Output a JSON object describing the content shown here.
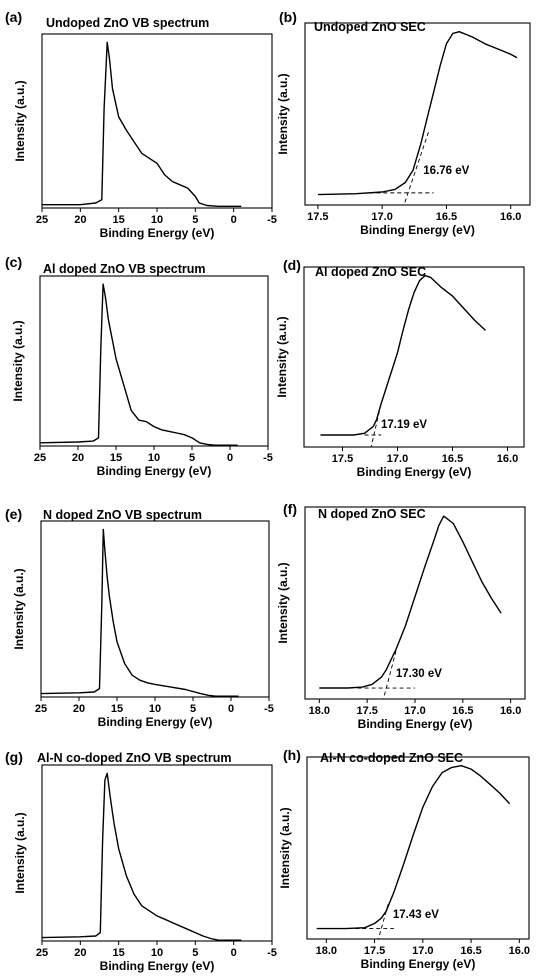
{
  "chart_data": [
    {
      "id": "a",
      "type": "line",
      "panel": "(a)",
      "title": "Undoped ZnO VB spectrum",
      "xlabel": "Binding Energy (eV)",
      "ylabel": "Intensity (a.u.)",
      "xlim": [
        25,
        -5
      ],
      "ylim": [
        0,
        1.05
      ],
      "xticks": [
        25,
        20,
        15,
        10,
        5,
        0,
        -5
      ],
      "xtick_labels": [
        "25",
        "20",
        "15",
        "10",
        "5",
        "0",
        "-5"
      ],
      "yticks_shown": false,
      "series": [
        {
          "x": [
            25,
            20,
            18,
            17.2,
            16.9,
            16.5,
            16.2,
            15.8,
            15,
            14,
            13,
            12,
            11,
            10,
            9,
            8,
            7,
            6,
            5,
            4.5,
            3.5,
            2,
            0,
            -1
          ],
          "y": [
            0.02,
            0.02,
            0.03,
            0.05,
            0.6,
            1.0,
            0.9,
            0.72,
            0.55,
            0.47,
            0.4,
            0.33,
            0.3,
            0.27,
            0.2,
            0.16,
            0.14,
            0.12,
            0.07,
            0.03,
            0.015,
            0.01,
            0.01,
            0.01
          ]
        }
      ],
      "annotations": []
    },
    {
      "id": "b",
      "type": "line",
      "panel": "(b)",
      "title": "Undoped ZnO   SEC",
      "xlabel": "Binding Energy (eV)",
      "ylabel": "Intensity (a.u.)",
      "xlim": [
        17.6,
        15.85
      ],
      "ylim": [
        0,
        1.05
      ],
      "xticks": [
        17.5,
        17.0,
        16.5,
        16.0
      ],
      "xtick_labels": [
        "17.5",
        "17.0",
        "16.5",
        "16.0"
      ],
      "yticks_shown": false,
      "series": [
        {
          "x": [
            17.5,
            17.2,
            17.0,
            16.9,
            16.82,
            16.76,
            16.7,
            16.65,
            16.6,
            16.55,
            16.5,
            16.45,
            16.4,
            16.3,
            16.2,
            16.1,
            16.0,
            15.95
          ],
          "y": [
            0.06,
            0.065,
            0.075,
            0.09,
            0.13,
            0.2,
            0.35,
            0.5,
            0.65,
            0.8,
            0.93,
            0.99,
            1.0,
            0.97,
            0.93,
            0.9,
            0.87,
            0.85
          ]
        }
      ],
      "extrapolation": {
        "x": [
          16.64,
          16.83
        ],
        "y": [
          0.42,
          0.0
        ]
      },
      "baseline_fit": {
        "x": [
          17.1,
          16.6
        ],
        "y": [
          0.07,
          0.07
        ]
      },
      "annotations": [
        {
          "text": "16.76 eV",
          "x": 16.68,
          "y": 0.18
        }
      ]
    },
    {
      "id": "c",
      "type": "line",
      "panel": "(c)",
      "title": "Al doped ZnO VB spectrum",
      "xlabel": "Binding Energy (eV)",
      "ylabel": "Intensity (a.u.)",
      "xlim": [
        25,
        -5
      ],
      "ylim": [
        0,
        1.05
      ],
      "xticks": [
        25,
        20,
        15,
        10,
        5,
        0,
        -5
      ],
      "xtick_labels": [
        "25",
        "20",
        "15",
        "10",
        "5",
        "0",
        "-5"
      ],
      "yticks_shown": false,
      "series": [
        {
          "x": [
            25,
            20,
            18,
            17.3,
            17.0,
            16.7,
            16.4,
            16,
            15.5,
            15,
            14,
            13,
            12,
            11,
            10,
            9,
            8,
            7,
            6,
            5,
            4.5,
            4,
            3,
            2,
            0,
            -1
          ],
          "y": [
            0.02,
            0.025,
            0.03,
            0.05,
            0.6,
            1.0,
            0.92,
            0.78,
            0.66,
            0.54,
            0.38,
            0.22,
            0.16,
            0.15,
            0.12,
            0.1,
            0.09,
            0.08,
            0.07,
            0.05,
            0.035,
            0.02,
            0.01,
            0.005,
            0.005,
            0.005
          ]
        }
      ],
      "annotations": []
    },
    {
      "id": "d",
      "type": "line",
      "panel": "(d)",
      "title": "Al doped ZnO   SEC",
      "xlabel": "Binding Energy (eV)",
      "ylabel": "Intensity (a.u.)",
      "xlim": [
        17.85,
        15.85
      ],
      "ylim": [
        0,
        1.05
      ],
      "xticks": [
        17.5,
        17.0,
        16.5,
        16.0
      ],
      "xtick_labels": [
        "17.5",
        "17.0",
        "16.5",
        "16.0"
      ],
      "yticks_shown": false,
      "series": [
        {
          "x": [
            17.7,
            17.4,
            17.3,
            17.22,
            17.19,
            17.15,
            17.1,
            17.05,
            17.0,
            16.95,
            16.9,
            16.85,
            16.8,
            16.75,
            16.7,
            16.6,
            16.5,
            16.4,
            16.3,
            16.2
          ],
          "y": [
            0.07,
            0.07,
            0.08,
            0.12,
            0.16,
            0.25,
            0.35,
            0.45,
            0.55,
            0.68,
            0.8,
            0.9,
            0.97,
            1.0,
            0.99,
            0.93,
            0.88,
            0.81,
            0.74,
            0.68
          ]
        }
      ],
      "extrapolation": {
        "x": [
          17.15,
          17.24
        ],
        "y": [
          0.25,
          0.0
        ]
      },
      "baseline_fit": {
        "x": [
          17.3,
          17.15
        ],
        "y": [
          0.07,
          0.07
        ]
      },
      "annotations": [
        {
          "text": "17.19 eV",
          "x": 17.15,
          "y": 0.11
        }
      ]
    },
    {
      "id": "e",
      "type": "line",
      "panel": "(e)",
      "title": "N doped ZnO VB spectrum",
      "xlabel": "Binding Energy (eV)",
      "ylabel": "Intensity (a.u.)",
      "xlim": [
        25,
        -5
      ],
      "ylim": [
        0,
        1.05
      ],
      "xticks": [
        25,
        20,
        15,
        10,
        5,
        0,
        -5
      ],
      "xtick_labels": [
        "25",
        "20",
        "15",
        "10",
        "5",
        "0",
        "-5"
      ],
      "yticks_shown": false,
      "series": [
        {
          "x": [
            25,
            20,
            18,
            17.3,
            17.0,
            16.8,
            16.6,
            16.3,
            16,
            15.5,
            15,
            14,
            13,
            12,
            11,
            10,
            8,
            6,
            4,
            3,
            2,
            0,
            -1
          ],
          "y": [
            0.02,
            0.025,
            0.03,
            0.05,
            0.55,
            1.0,
            0.88,
            0.72,
            0.6,
            0.45,
            0.33,
            0.2,
            0.13,
            0.1,
            0.085,
            0.075,
            0.06,
            0.045,
            0.02,
            0.01,
            0.005,
            0.005,
            0.005
          ]
        }
      ],
      "annotations": []
    },
    {
      "id": "f",
      "type": "line",
      "panel": "(f)",
      "title": "N doped ZnO   SEC",
      "xlabel": "Binding Energy (eV)",
      "ylabel": "Intensity (a.u.)",
      "xlim": [
        18.15,
        15.85
      ],
      "ylim": [
        0,
        1.05
      ],
      "xticks": [
        18.0,
        17.5,
        17.0,
        16.5,
        16.0
      ],
      "xtick_labels": [
        "18.0",
        "17.5",
        "17.0",
        "16.5",
        "16.0"
      ],
      "yticks_shown": false,
      "series": [
        {
          "x": [
            18.0,
            17.7,
            17.55,
            17.45,
            17.35,
            17.3,
            17.2,
            17.1,
            17.0,
            16.9,
            16.8,
            16.75,
            16.7,
            16.6,
            16.5,
            16.4,
            16.3,
            16.2,
            16.1
          ],
          "y": [
            0.06,
            0.06,
            0.065,
            0.08,
            0.12,
            0.16,
            0.27,
            0.4,
            0.56,
            0.72,
            0.87,
            0.95,
            1.0,
            0.96,
            0.86,
            0.75,
            0.64,
            0.55,
            0.47
          ]
        }
      ],
      "extrapolation": {
        "x": [
          17.18,
          17.33
        ],
        "y": [
          0.3,
          0.0
        ]
      },
      "baseline_fit": {
        "x": [
          17.6,
          17.0
        ],
        "y": [
          0.06,
          0.06
        ]
      },
      "annotations": [
        {
          "text": "17.30 eV",
          "x": 17.2,
          "y": 0.12
        }
      ]
    },
    {
      "id": "g",
      "type": "line",
      "panel": "(g)",
      "title": "Al-N co-doped ZnO VB spectrum",
      "xlabel": "Binding Energy (eV)",
      "ylabel": "Intensity (a.u.)",
      "xlim": [
        25,
        -5
      ],
      "ylim": [
        0,
        1.05
      ],
      "xticks": [
        25,
        20,
        15,
        10,
        5,
        0,
        -5
      ],
      "xtick_labels": [
        "25",
        "20",
        "15",
        "10",
        "5",
        "0",
        "-5"
      ],
      "yticks_shown": false,
      "series": [
        {
          "x": [
            25,
            20,
            18,
            17.4,
            17.1,
            16.8,
            16.5,
            16.1,
            15.6,
            15,
            14,
            13,
            12,
            11,
            10,
            9,
            8,
            6,
            4,
            3,
            2,
            0,
            -1
          ],
          "y": [
            0.02,
            0.025,
            0.03,
            0.05,
            0.6,
            0.96,
            1.0,
            0.86,
            0.7,
            0.55,
            0.39,
            0.28,
            0.21,
            0.18,
            0.15,
            0.13,
            0.11,
            0.07,
            0.03,
            0.015,
            0.005,
            0.005,
            0.005
          ]
        }
      ],
      "annotations": []
    },
    {
      "id": "h",
      "type": "line",
      "panel": "(h)",
      "title": "Al-N co-doped ZnO   SEC",
      "xlabel": "Binding Energy (eV)",
      "ylabel": "Intensity (a.u.)",
      "xlim": [
        18.2,
        15.9
      ],
      "ylim": [
        0,
        1.05
      ],
      "xticks": [
        18.0,
        17.5,
        17.0,
        16.5,
        16.0
      ],
      "xtick_labels": [
        "18.0",
        "17.5",
        "17.0",
        "16.5",
        "16.0"
      ],
      "yticks_shown": false,
      "series": [
        {
          "x": [
            18.1,
            17.8,
            17.6,
            17.5,
            17.43,
            17.38,
            17.3,
            17.2,
            17.1,
            17.0,
            16.9,
            16.8,
            16.7,
            16.6,
            16.5,
            16.4,
            16.3,
            16.2,
            16.1
          ],
          "y": [
            0.06,
            0.06,
            0.065,
            0.09,
            0.12,
            0.16,
            0.27,
            0.43,
            0.6,
            0.76,
            0.88,
            0.96,
            0.99,
            1.0,
            0.98,
            0.94,
            0.89,
            0.84,
            0.78
          ]
        }
      ],
      "extrapolation": {
        "x": [
          17.36,
          17.46
        ],
        "y": [
          0.2,
          0.0
        ]
      },
      "baseline_fit": {
        "x": [
          17.7,
          17.3
        ],
        "y": [
          0.06,
          0.06
        ]
      },
      "annotations": [
        {
          "text": "17.43 eV",
          "x": 17.31,
          "y": 0.12
        }
      ]
    }
  ]
}
